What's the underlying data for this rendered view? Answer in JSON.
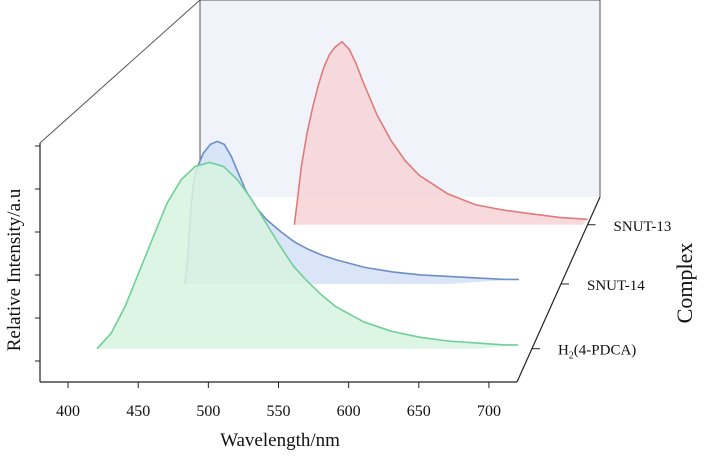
{
  "chart_data": {
    "type": "line",
    "xlabel": "Wavelength/nm",
    "ylabel": "Relative Intensity/a.u",
    "zlabel": "Complex",
    "xlim": [
      380,
      720
    ],
    "xticks": [
      400,
      450,
      500,
      550,
      600,
      650,
      700
    ],
    "series": [
      {
        "name": "H₂(4-PDCA)",
        "name_main": "H",
        "name_sub": "2",
        "name_tail": "(4-PDCA)",
        "color": "#6fcf97",
        "fill": "#d7f3e1",
        "x": [
          410,
          420,
          430,
          440,
          450,
          460,
          470,
          480,
          490,
          500,
          510,
          520,
          530,
          540,
          550,
          560,
          570,
          580,
          600,
          620,
          640,
          660,
          680,
          700,
          710
        ],
        "y": [
          0.0,
          0.08,
          0.22,
          0.4,
          0.58,
          0.76,
          0.88,
          0.95,
          0.97,
          0.95,
          0.88,
          0.78,
          0.66,
          0.54,
          0.43,
          0.35,
          0.28,
          0.22,
          0.14,
          0.09,
          0.06,
          0.04,
          0.03,
          0.02,
          0.02
        ]
      },
      {
        "name": "SNUT-14",
        "color": "#6d8fc7",
        "fill": "#d4e1f7",
        "x": [
          452,
          454,
          456,
          458,
          460,
          465,
          470,
          475,
          480,
          485,
          490,
          495,
          500,
          510,
          520,
          530,
          540,
          550,
          560,
          580,
          600,
          620,
          640,
          660,
          680,
          690
        ],
        "y": [
          0.0,
          0.18,
          0.48,
          0.66,
          0.76,
          0.87,
          0.93,
          0.95,
          0.93,
          0.85,
          0.74,
          0.63,
          0.54,
          0.43,
          0.35,
          0.28,
          0.23,
          0.19,
          0.16,
          0.11,
          0.08,
          0.06,
          0.05,
          0.04,
          0.03,
          0.03
        ]
      },
      {
        "name": "SNUT-13",
        "color": "#e07b7b",
        "fill": "#f7d4d6",
        "x": [
          511,
          513,
          516,
          520,
          524,
          528,
          532,
          536,
          540,
          545,
          550,
          555,
          560,
          570,
          580,
          590,
          600,
          620,
          640,
          660,
          680,
          700,
          720
        ],
        "y": [
          0.0,
          0.12,
          0.32,
          0.5,
          0.64,
          0.76,
          0.86,
          0.93,
          0.97,
          1.0,
          0.96,
          0.88,
          0.78,
          0.6,
          0.46,
          0.35,
          0.27,
          0.17,
          0.11,
          0.08,
          0.06,
          0.04,
          0.03
        ]
      }
    ],
    "grid": false,
    "legend": "none"
  }
}
